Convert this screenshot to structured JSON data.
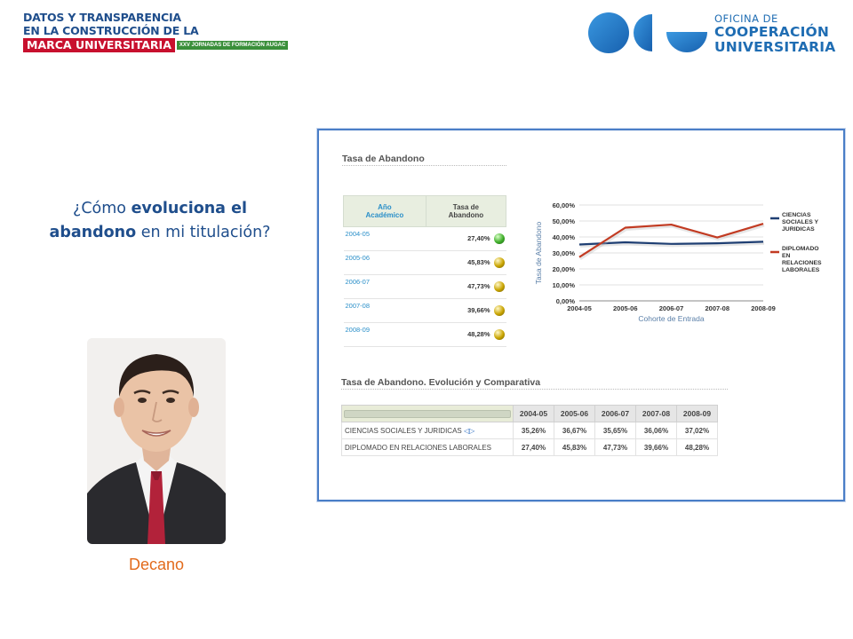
{
  "header": {
    "left_lines": [
      "DATOS Y TRANSPARENCIA",
      "EN LA CONSTRUCCIÓN DE LA"
    ],
    "left_red": "MARCA UNIVERSITARIA",
    "left_green": "XXV JORNADAS DE FORMACIÓN AUGAC",
    "right_line1": "OFICINA DE",
    "right_line2": "COOPERACIÓN",
    "right_line3": "UNIVERSITARIA",
    "brand_color": "#1f6db3"
  },
  "question": {
    "pre": "¿Cómo ",
    "bold1": "evoluciona el",
    "bold2": "abandono",
    "post": " en mi titulación?"
  },
  "photo": {
    "icon": "portrait-photo"
  },
  "caption": "Decano",
  "dashboard": {
    "section1_title": "Tasa de Abandono",
    "table_headers": [
      "Año\nAcadémico",
      "Tasa de\nAbandono"
    ],
    "rows": [
      {
        "year": "2004-05",
        "value": "27,40%",
        "status": "green"
      },
      {
        "year": "2005-06",
        "value": "45,83%",
        "status": "yellow"
      },
      {
        "year": "2006-07",
        "value": "47,73%",
        "status": "yellow"
      },
      {
        "year": "2007-08",
        "value": "39,66%",
        "status": "yellow"
      },
      {
        "year": "2008-09",
        "value": "48,28%",
        "status": "yellow"
      }
    ],
    "status_colors": {
      "green": "#3fae2a",
      "yellow": "#c9a400"
    },
    "section2_title": "Tasa de Abandono. Evolución y Comparativa",
    "comp_years": [
      "2004-05",
      "2005-06",
      "2006-07",
      "2007-08",
      "2008-09"
    ],
    "comp_rows": [
      {
        "name": "CIENCIAS SOCIALES Y JURIDICAS",
        "values": [
          "35,26%",
          "36,67%",
          "35,65%",
          "36,06%",
          "37,02%"
        ]
      },
      {
        "name": "DIPLOMADO EN RELACIONES LABORALES",
        "values": [
          "27,40%",
          "45,83%",
          "47,73%",
          "39,66%",
          "48,28%"
        ]
      }
    ]
  },
  "chart_data": {
    "type": "line",
    "title": "",
    "xlabel": "Cohorte de Entrada",
    "ylabel": "Tasa de Abandono",
    "categories": [
      "2004-05",
      "2005-06",
      "2006-07",
      "2007-08",
      "2008-09"
    ],
    "y_ticks": [
      "0,00%",
      "10,00%",
      "20,00%",
      "30,00%",
      "40,00%",
      "50,00%",
      "60,00%"
    ],
    "ylim": [
      0,
      60
    ],
    "grid": true,
    "legend": "right",
    "series": [
      {
        "name": "CIENCIAS SOCIALES Y JURIDICAS",
        "color": "#1f3f73",
        "values": [
          35.26,
          36.67,
          35.65,
          36.06,
          37.02
        ]
      },
      {
        "name": "DIPLOMADO EN RELACIONES LABORALES",
        "color": "#c23b22",
        "values": [
          27.4,
          45.83,
          47.73,
          39.66,
          48.28
        ]
      }
    ]
  }
}
